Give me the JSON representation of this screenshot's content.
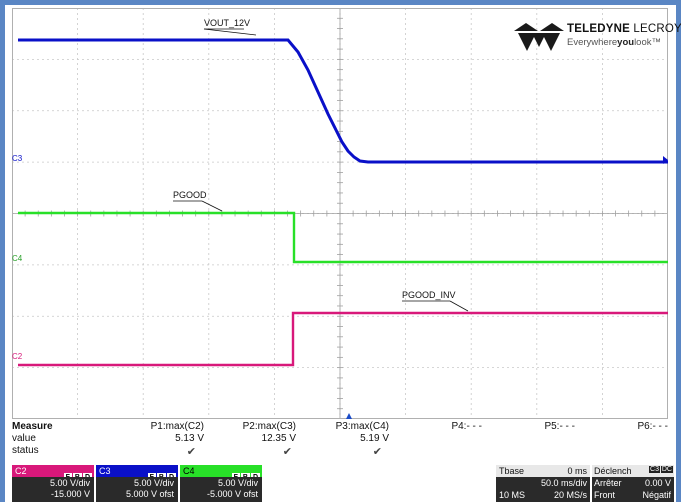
{
  "brand": {
    "name_bold": "TELEDYNE",
    "name_light": " LECROY",
    "tagline_a": "Everywhere",
    "tagline_b": "you",
    "tagline_c": "look",
    "tagline_tm": "™"
  },
  "traces": {
    "vout": {
      "label": "VOUT_12V",
      "channel": "C3",
      "color": "#0a10c8"
    },
    "pgood": {
      "label": "PGOOD",
      "channel": "C4",
      "color": "#28e028"
    },
    "pgood_inv": {
      "label": "PGOOD_INV",
      "channel": "C2",
      "color": "#d8187a"
    }
  },
  "measure": {
    "title": "Measure",
    "row_value": "value",
    "row_status": "status",
    "params": [
      {
        "name": "P1:max(C2)",
        "value": "5.13 V",
        "status": "✔"
      },
      {
        "name": "P2:max(C3)",
        "value": "12.35 V",
        "status": "✔"
      },
      {
        "name": "P3:max(C4)",
        "value": "5.19 V",
        "status": "✔"
      },
      {
        "name": "P4:- - -",
        "value": "",
        "status": ""
      },
      {
        "name": "P5:- - -",
        "value": "",
        "status": ""
      },
      {
        "name": "P6:- - -",
        "value": "",
        "status": ""
      }
    ]
  },
  "channels": [
    {
      "name": "C2",
      "color": "#d8187a",
      "tags": [
        "F",
        "B",
        "D"
      ],
      "vdiv": "5.00 V/div",
      "offset": "-15.000 V"
    },
    {
      "name": "C3",
      "color": "#0a10c8",
      "tags": [
        "F",
        "B",
        "D"
      ],
      "vdiv": "5.00 V/div",
      "offset": "5.000 V ofst"
    },
    {
      "name": "C4",
      "color": "#28e028",
      "tags": [
        "F",
        "B",
        "D"
      ],
      "vdiv": "5.00 V/div",
      "offset": "-5.000 V ofst"
    }
  ],
  "timebase": {
    "label": "Tbase",
    "delay": "0 ms",
    "tdiv": "50.0 ms/div",
    "samples": "10 MS",
    "rate": "20 MS/s"
  },
  "trigger": {
    "label": "Déclench",
    "tags": [
      "C3",
      "DC"
    ],
    "mode": "Arrêter",
    "level": "0.00 V",
    "type": "Front",
    "slope": "Négatif"
  }
}
